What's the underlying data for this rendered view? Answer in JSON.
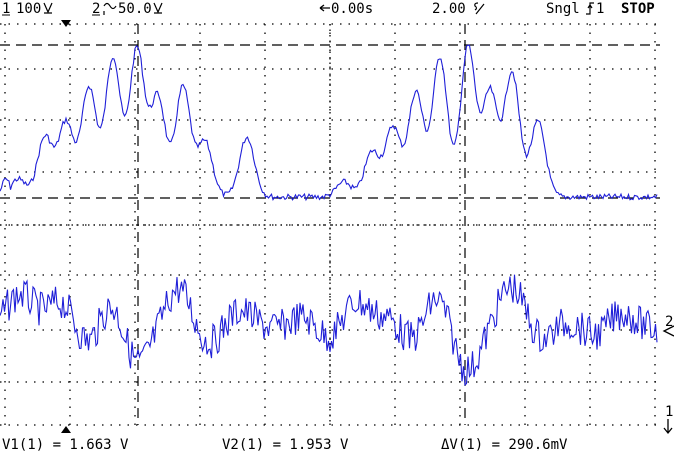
{
  "header": {
    "ch1_label": "1",
    "ch1_scale": "100",
    "ch2_label": "2",
    "ch2_scale": "50.0",
    "time_delay": "0.00s",
    "time_scale": "2.00",
    "acq_mode": "Sngl",
    "trigger_source": "1",
    "run_state": "STOP"
  },
  "footer": {
    "v1": "V1(1) = 1.663 V",
    "v2": "V2(1) = 1.953 V",
    "dv": "ΔV(1) = 290.6mV"
  },
  "markers": {
    "ch2": "2",
    "ch1": "1"
  },
  "colors": {
    "trace": "#1f1fd8",
    "grid": "#000000",
    "background": "#ffffff"
  },
  "icons": [
    "trigger-time-marker-icon",
    "trigger-slope-icon",
    "delay-arrow-icon",
    "ch1-ground-marker-icon",
    "ch2-ground-marker-icon"
  ]
}
